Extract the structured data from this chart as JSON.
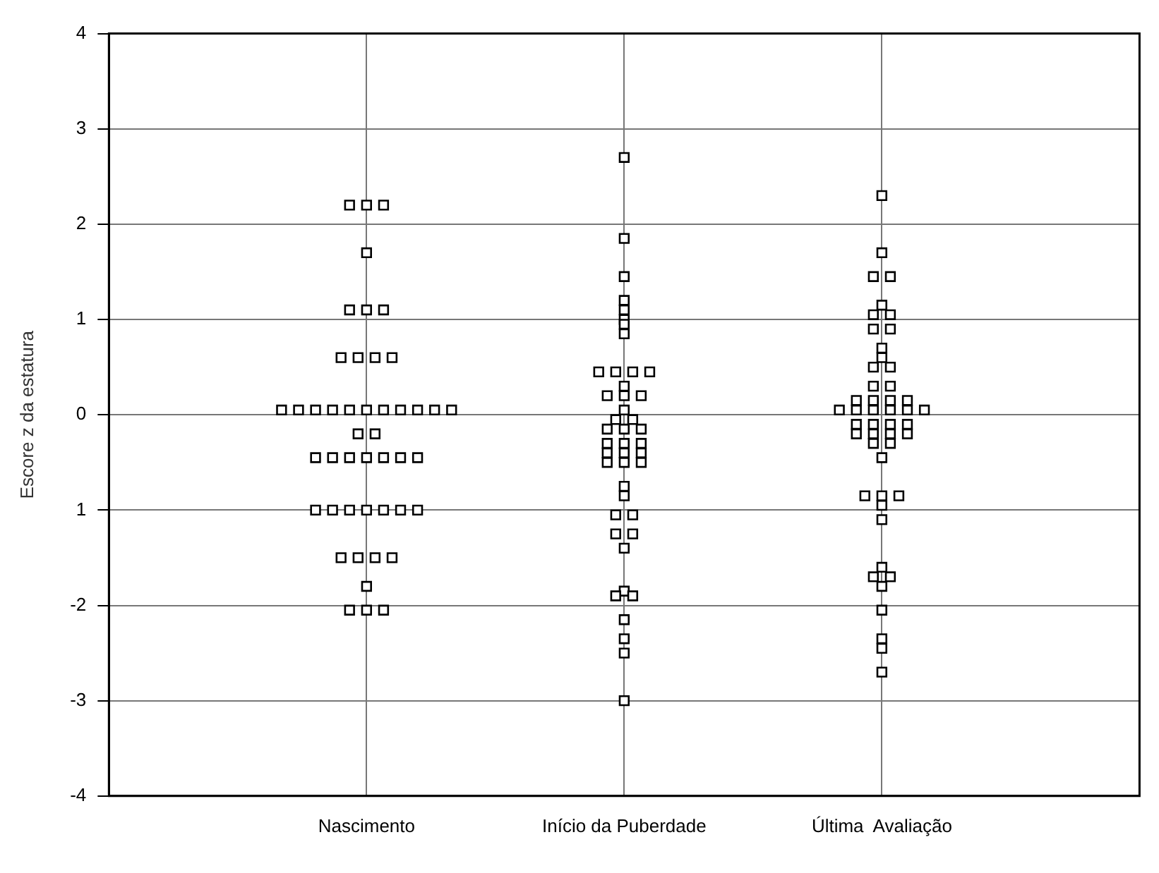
{
  "chart_data": {
    "type": "scatter",
    "ylabel": "Escore z da estatura",
    "categories": [
      "Nascimento",
      "Início da Puberdade",
      "Última  Avaliação"
    ],
    "ylim": [
      -4,
      4
    ],
    "yticks": [
      -4,
      -3,
      -2,
      {
        "value": -1,
        "label": "1"
      },
      0,
      1,
      2,
      3,
      4
    ],
    "grid": true,
    "legend": false,
    "marker": "square",
    "series": [
      {
        "color": "#000000",
        "x": [
          "Nascimento",
          "Nascimento",
          "Nascimento",
          "Nascimento",
          "Nascimento",
          "Nascimento",
          "Nascimento",
          "Nascimento",
          "Nascimento",
          "Nascimento",
          "Nascimento",
          "Nascimento",
          "Nascimento",
          "Nascimento",
          "Nascimento",
          "Nascimento",
          "Nascimento",
          "Nascimento",
          "Nascimento",
          "Nascimento",
          "Nascimento",
          "Nascimento",
          "Nascimento",
          "Nascimento",
          "Nascimento",
          "Nascimento",
          "Nascimento",
          "Nascimento",
          "Nascimento",
          "Nascimento",
          "Nascimento",
          "Nascimento",
          "Nascimento",
          "Nascimento",
          "Nascimento",
          "Nascimento",
          "Nascimento",
          "Nascimento",
          "Nascimento",
          "Nascimento",
          "Nascimento",
          "Nascimento",
          "Nascimento",
          "Nascimento",
          "Nascimento",
          "Nascimento"
        ],
        "values": [
          2.2,
          2.2,
          2.2,
          1.7,
          1.1,
          1.1,
          1.1,
          0.6,
          0.6,
          0.6,
          0.6,
          0.05,
          0.05,
          0.05,
          0.05,
          0.05,
          0.05,
          0.05,
          0.05,
          0.05,
          0.05,
          0.05,
          -0.2,
          -0.2,
          -0.45,
          -0.45,
          -0.45,
          -0.45,
          -0.45,
          -0.45,
          -0.45,
          -1,
          -1,
          -1,
          -1,
          -1,
          -1,
          -1,
          -1.5,
          -1.5,
          -1.5,
          -1.5,
          -1.8,
          -2.05,
          -2.05,
          -2.05
        ]
      },
      {
        "color": "#000000",
        "x": [
          "Início da Puberdade",
          "Início da Puberdade",
          "Início da Puberdade",
          "Início da Puberdade",
          "Início da Puberdade",
          "Início da Puberdade",
          "Início da Puberdade",
          "Início da Puberdade",
          "Início da Puberdade",
          "Início da Puberdade",
          "Início da Puberdade",
          "Início da Puberdade",
          "Início da Puberdade",
          "Início da Puberdade",
          "Início da Puberdade",
          "Início da Puberdade",
          "Início da Puberdade",
          "Início da Puberdade",
          "Início da Puberdade",
          "Início da Puberdade",
          "Início da Puberdade",
          "Início da Puberdade",
          "Início da Puberdade",
          "Início da Puberdade",
          "Início da Puberdade",
          "Início da Puberdade",
          "Início da Puberdade",
          "Início da Puberdade",
          "Início da Puberdade",
          "Início da Puberdade",
          "Início da Puberdade",
          "Início da Puberdade",
          "Início da Puberdade",
          "Início da Puberdade",
          "Início da Puberdade",
          "Início da Puberdade",
          "Início da Puberdade",
          "Início da Puberdade",
          "Início da Puberdade",
          "Início da Puberdade",
          "Início da Puberdade",
          "Início da Puberdade",
          "Início da Puberdade",
          "Início da Puberdade",
          "Início da Puberdade"
        ],
        "values": [
          2.7,
          1.85,
          1.45,
          1.2,
          1.1,
          1,
          0.95,
          0.85,
          0.45,
          0.45,
          0.45,
          0.45,
          0.3,
          0.2,
          0.2,
          0.2,
          0.05,
          -0.05,
          -0.05,
          -0.15,
          -0.15,
          -0.15,
          -0.3,
          -0.3,
          -0.3,
          -0.4,
          -0.4,
          -0.4,
          -0.5,
          -0.5,
          -0.5,
          -0.75,
          -0.85,
          -1.05,
          -1.05,
          -1.25,
          -1.25,
          -1.4,
          -1.85,
          -1.9,
          -1.9,
          -2.15,
          -2.35,
          -2.5,
          -3
        ]
      },
      {
        "color": "#000000",
        "x": [
          "Última  Avaliação",
          "Última  Avaliação",
          "Última  Avaliação",
          "Última  Avaliação",
          "Última  Avaliação",
          "Última  Avaliação",
          "Última  Avaliação",
          "Última  Avaliação",
          "Última  Avaliação",
          "Última  Avaliação",
          "Última  Avaliação",
          "Última  Avaliação",
          "Última  Avaliação",
          "Última  Avaliação",
          "Última  Avaliação",
          "Última  Avaliação",
          "Última  Avaliação",
          "Última  Avaliação",
          "Última  Avaliação",
          "Última  Avaliação",
          "Última  Avaliação",
          "Última  Avaliação",
          "Última  Avaliação",
          "Última  Avaliação",
          "Última  Avaliação",
          "Última  Avaliação",
          "Última  Avaliação",
          "Última  Avaliação",
          "Última  Avaliação",
          "Última  Avaliação",
          "Última  Avaliação",
          "Última  Avaliação",
          "Última  Avaliação",
          "Última  Avaliação",
          "Última  Avaliação",
          "Última  Avaliação",
          "Última  Avaliação",
          "Última  Avaliação",
          "Última  Avaliação",
          "Última  Avaliação",
          "Última  Avaliação",
          "Última  Avaliação",
          "Última  Avaliação",
          "Última  Avaliação",
          "Última  Avaliação",
          "Última  Avaliação",
          "Última  Avaliação",
          "Última  Avaliação",
          "Última  Avaliação"
        ],
        "values": [
          2.3,
          1.7,
          1.45,
          1.45,
          1.15,
          1.05,
          1.05,
          0.9,
          0.9,
          0.7,
          0.6,
          0.5,
          0.5,
          0.3,
          0.3,
          0.15,
          0.15,
          0.15,
          0.15,
          0.05,
          0.05,
          0.05,
          0.05,
          0.05,
          0.05,
          -0.1,
          -0.1,
          -0.1,
          -0.1,
          -0.2,
          -0.2,
          -0.2,
          -0.2,
          -0.3,
          -0.3,
          -0.45,
          -0.85,
          -0.85,
          -0.85,
          -0.95,
          -1.1,
          -1.6,
          -1.7,
          -1.7,
          -1.8,
          -2.05,
          -2.35,
          -2.45,
          -2.7
        ]
      }
    ]
  }
}
